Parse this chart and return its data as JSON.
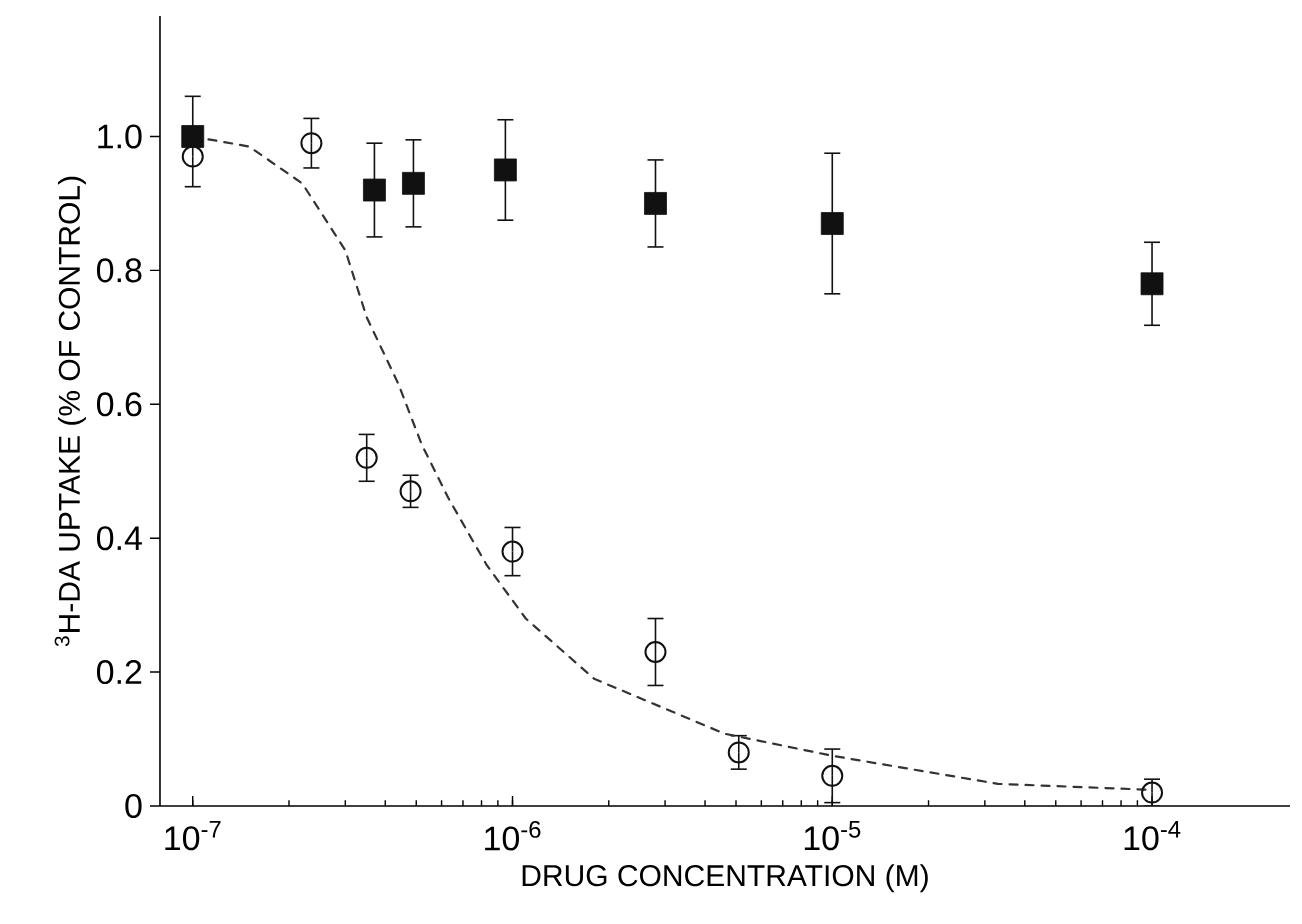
{
  "chart_data": {
    "type": "scatter",
    "xlabel": "DRUG CONCENTRATION (M)",
    "ylabel": "$^{3}$H-DA UPTAKE (% OF CONTROL)",
    "log": "x",
    "xlim": [
      7.9e-08,
      0.00027
    ],
    "ylim": [
      0,
      1.18
    ],
    "xticks": [
      {
        "value": 1e-07,
        "label": "10$^{-7}$"
      },
      {
        "value": 1e-06,
        "label": "10$^{-6}$"
      },
      {
        "value": 1e-05,
        "label": "10$^{-5}$"
      },
      {
        "value": 0.0001,
        "label": "10$^{-4}$"
      }
    ],
    "yticks": [
      0,
      0.2,
      0.4,
      0.6,
      0.8,
      {
        "value": 1.0,
        "label": "1.0"
      }
    ],
    "series": [
      {
        "type": "scatter",
        "color": "#111111",
        "marker": "square",
        "x": [
          1e-07,
          3.7e-07,
          4.9e-07,
          9.5e-07,
          2.8e-06,
          1e-05,
          0.0001
        ],
        "values": [
          1.0,
          0.92,
          0.93,
          0.95,
          0.9,
          0.87,
          0.78
        ],
        "errors": [
          [
            1.0,
            1.06
          ],
          0.07,
          0.065,
          0.075,
          0.065,
          0.105,
          0.062
        ]
      },
      {
        "type": "scatter",
        "color": "#111111",
        "marker": "circle",
        "x": [
          1e-07,
          2.35e-07,
          3.5e-07,
          4.8e-07,
          1e-06,
          2.8e-06,
          5.1e-06,
          1e-05,
          0.0001
        ],
        "values": [
          0.97,
          0.99,
          0.52,
          0.47,
          0.38,
          0.23,
          0.08,
          0.045,
          0.02
        ],
        "errors": [
          [
            0.925,
            0.99
          ],
          0.037,
          0.035,
          0.024,
          0.036,
          0.05,
          0.025,
          0.04,
          0.02
        ]
      },
      {
        "type": "line",
        "color": "#333333",
        "marker": "none",
        "line_style": "dashed",
        "x": [
          1e-07,
          1.5e-07,
          2.2e-07,
          3e-07,
          3.5e-07,
          4.4e-07,
          5.2e-07,
          6.3e-07,
          8.3e-07,
          1.1e-06,
          1.8e-06,
          4.6e-06,
          1e-05,
          3.3e-05,
          0.0001
        ],
        "values": [
          1.0,
          0.985,
          0.93,
          0.83,
          0.73,
          0.63,
          0.54,
          0.46,
          0.36,
          0.28,
          0.19,
          0.108,
          0.075,
          0.033,
          0.024
        ]
      }
    ]
  }
}
